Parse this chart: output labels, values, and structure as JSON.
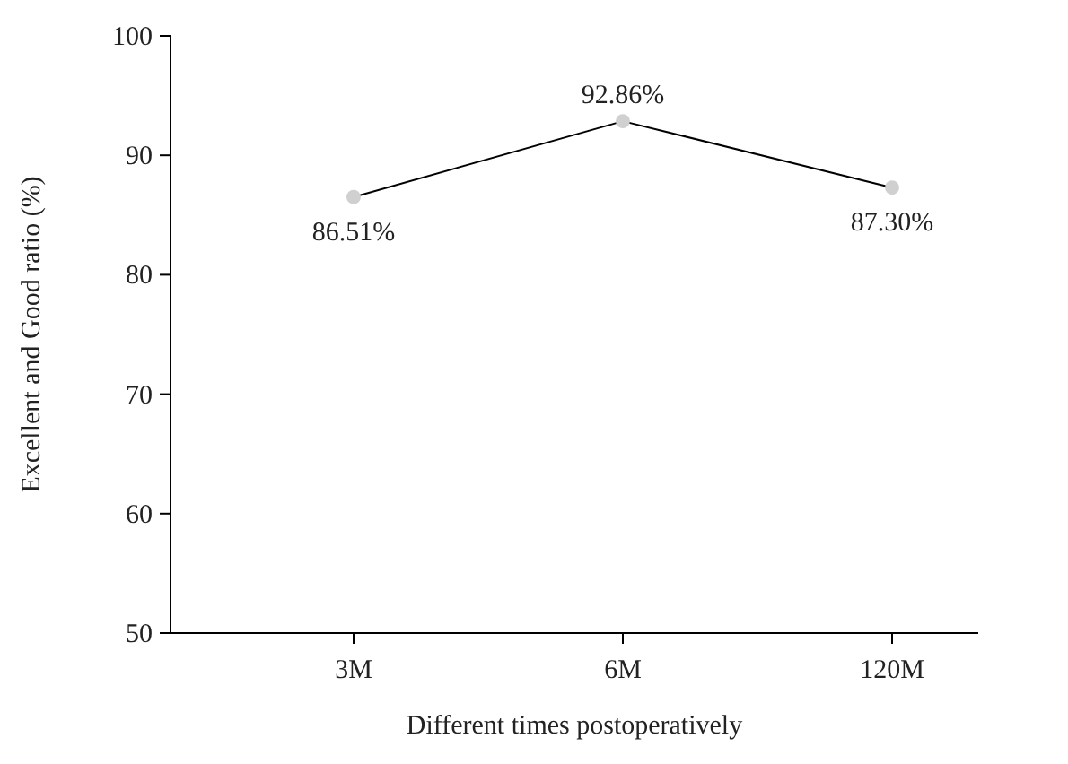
{
  "chart_data": {
    "type": "line",
    "xlabel": "Different times postoperatively",
    "ylabel": "Excellent and Good ratio (%)",
    "categories": [
      "3M",
      "6M",
      "120M"
    ],
    "series": [
      {
        "color": "#000000",
        "values": [
          86.51,
          92.86,
          87.3
        ],
        "value_labels": [
          "86.51%",
          "92.86%",
          "87.30%"
        ]
      }
    ],
    "ylim": [
      50,
      100
    ],
    "yticks": [
      50,
      60,
      70,
      80,
      90,
      100
    ],
    "marker": "circle",
    "grid": false
  }
}
